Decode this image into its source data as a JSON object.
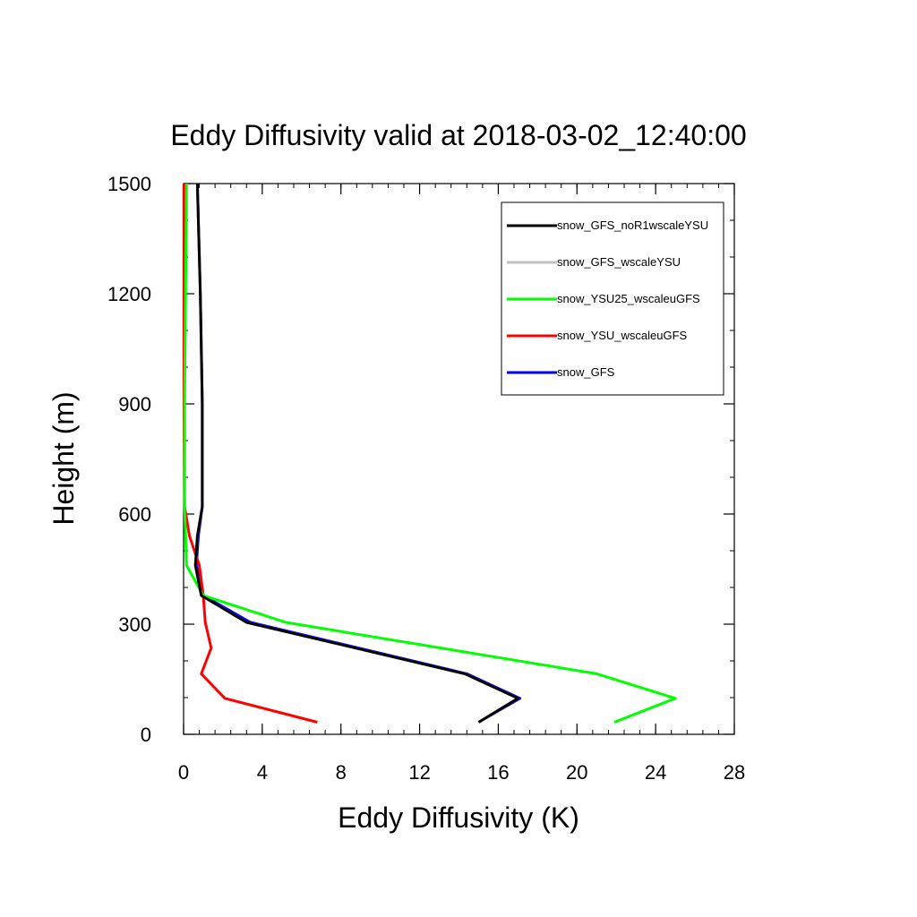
{
  "chart_data": {
    "type": "line",
    "title": "Eddy Diffusivity valid at 2018-03-02_12:40:00",
    "xlabel": "Eddy Diffusivity (K)",
    "ylabel": "Height (m)",
    "xlim": [
      0,
      28
    ],
    "ylim": [
      0,
      1500
    ],
    "xticks": [
      0,
      4,
      8,
      12,
      16,
      20,
      24,
      28
    ],
    "yticks": [
      0,
      300,
      600,
      900,
      1200,
      1500
    ],
    "grid": false,
    "legend_position": "top-right",
    "series": [
      {
        "name": "snow_GFS",
        "color": "#0000ff",
        "x": [
          15.0,
          17.1,
          14.4,
          3.4,
          1.0,
          0.65,
          0.75,
          0.95,
          0.95,
          0.85,
          0.7
        ],
        "y": [
          33,
          98,
          165,
          305,
          378,
          460,
          540,
          620,
          900,
          1200,
          1500
        ]
      },
      {
        "name": "snow_YSU_wscaleuGFS",
        "color": "#ff0000",
        "x": [
          6.8,
          2.1,
          0.9,
          1.4,
          1.1,
          1.0,
          0.8,
          0.3,
          0.05,
          0.02,
          0.02
        ],
        "y": [
          33,
          98,
          165,
          235,
          305,
          378,
          460,
          540,
          620,
          900,
          1500
        ]
      },
      {
        "name": "snow_YSU25_wscaleuGFS",
        "color": "#00ff00",
        "x": [
          21.9,
          25.0,
          21.0,
          5.2,
          1.0,
          0.15,
          0.05,
          0.05,
          0.1,
          0.15
        ],
        "y": [
          33,
          98,
          165,
          305,
          378,
          460,
          620,
          900,
          1200,
          1500
        ]
      },
      {
        "name": "snow_GFS_wscaleYSU",
        "color": "#c0c0c0",
        "x": [
          15.0,
          17.0,
          14.3,
          3.2,
          0.9,
          0.6,
          0.7,
          0.95,
          0.95,
          0.85,
          0.7
        ],
        "y": [
          33,
          98,
          165,
          305,
          378,
          460,
          540,
          620,
          900,
          1200,
          1500
        ]
      },
      {
        "name": "snow_GFS_noR1wscaleYSU",
        "color": "#000000",
        "x": [
          15.0,
          17.0,
          14.3,
          3.2,
          0.9,
          0.6,
          0.7,
          0.95,
          0.95,
          0.85,
          0.7
        ],
        "y": [
          33,
          98,
          165,
          305,
          378,
          460,
          540,
          620,
          900,
          1200,
          1500
        ]
      }
    ],
    "legend": [
      {
        "name": "snow_GFS_noR1wscaleYSU",
        "color": "#000000"
      },
      {
        "name": "snow_GFS_wscaleYSU",
        "color": "#c0c0c0"
      },
      {
        "name": "snow_YSU25_wscaleuGFS",
        "color": "#00ff00"
      },
      {
        "name": "snow_YSU_wscaleuGFS",
        "color": "#ff0000"
      },
      {
        "name": "snow_GFS",
        "color": "#0000ff"
      }
    ]
  }
}
